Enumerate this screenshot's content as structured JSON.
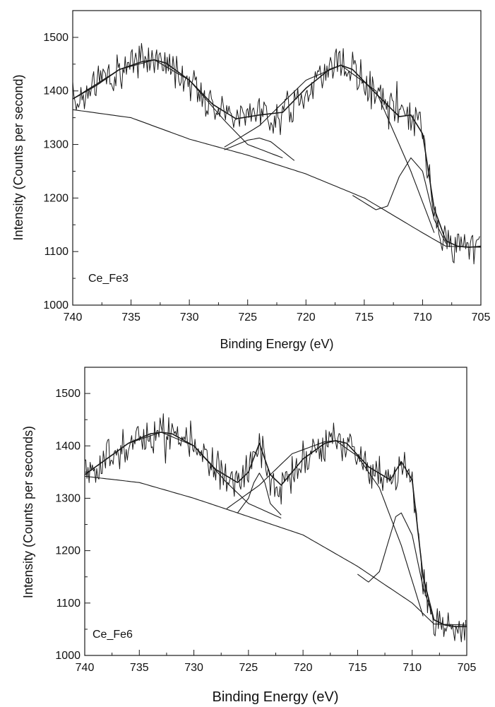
{
  "chart_data": [
    {
      "type": "line",
      "sample_label": "Ce_Fe3",
      "xlabel": "Binding Energy (eV)",
      "ylabel": "Intensity (Counts per second)",
      "xlim": [
        740,
        705
      ],
      "ylim": [
        1000,
        1550
      ],
      "x_reversed": true,
      "xticks": [
        740,
        735,
        730,
        725,
        720,
        715,
        710,
        705
      ],
      "yticks": [
        1000,
        1100,
        1200,
        1300,
        1400,
        1500
      ],
      "line_color": "#1a1a1a",
      "series": [
        {
          "role": "raw",
          "x": [
            740,
            738,
            736,
            734,
            733,
            732,
            730,
            728,
            726,
            724,
            722,
            720,
            718,
            717,
            716,
            714,
            712,
            711,
            710,
            709,
            708,
            707,
            706,
            705
          ],
          "y": [
            1385,
            1410,
            1440,
            1460,
            1462,
            1455,
            1420,
            1375,
            1350,
            1360,
            1355,
            1405,
            1440,
            1448,
            1440,
            1395,
            1350,
            1355,
            1320,
            1180,
            1120,
            1110,
            1105,
            1115
          ]
        },
        {
          "role": "envelope",
          "x": [
            740,
            738,
            736,
            734,
            733,
            732,
            730,
            728,
            726,
            724,
            722,
            720,
            718,
            717,
            716,
            714,
            712,
            711,
            710,
            709,
            708,
            707,
            706,
            705
          ],
          "y": [
            1385,
            1410,
            1440,
            1455,
            1458,
            1452,
            1420,
            1375,
            1348,
            1355,
            1360,
            1405,
            1440,
            1448,
            1440,
            1395,
            1352,
            1355,
            1320,
            1180,
            1120,
            1110,
            1108,
            1110
          ]
        },
        {
          "role": "component",
          "x": [
            740,
            736,
            733,
            730,
            727,
            725,
            722
          ],
          "y": [
            1385,
            1440,
            1458,
            1420,
            1345,
            1300,
            1275
          ]
        },
        {
          "role": "component",
          "x": [
            727,
            725,
            724,
            723,
            721
          ],
          "y": [
            1290,
            1308,
            1312,
            1305,
            1270
          ]
        },
        {
          "role": "component",
          "x": [
            727,
            724,
            720,
            717,
            714,
            711,
            709
          ],
          "y": [
            1295,
            1335,
            1420,
            1448,
            1400,
            1250,
            1135
          ]
        },
        {
          "role": "component",
          "x": [
            716,
            714,
            713,
            712,
            711,
            710,
            709,
            708
          ],
          "y": [
            1205,
            1178,
            1185,
            1240,
            1275,
            1250,
            1160,
            1115
          ]
        },
        {
          "role": "background",
          "x": [
            740,
            735,
            730,
            725,
            720,
            715,
            710,
            708,
            705
          ],
          "y": [
            1365,
            1350,
            1310,
            1280,
            1245,
            1200,
            1135,
            1110,
            1108
          ]
        }
      ]
    },
    {
      "type": "line",
      "sample_label": "Ce_Fe6",
      "xlabel": "Binding Energy (eV)",
      "ylabel": "Intensity (Counts per seconds)",
      "xlim": [
        740,
        705
      ],
      "ylim": [
        1000,
        1550
      ],
      "x_reversed": true,
      "xticks": [
        740,
        735,
        730,
        725,
        720,
        715,
        710,
        705
      ],
      "yticks": [
        1000,
        1100,
        1200,
        1300,
        1400,
        1500
      ],
      "line_color": "#1a1a1a",
      "series": [
        {
          "role": "raw",
          "x": [
            740,
            738,
            736,
            734,
            733,
            732,
            730,
            728,
            726,
            725,
            724,
            723,
            722,
            720,
            718,
            717,
            716,
            714,
            712,
            711,
            710,
            709,
            708,
            707,
            706,
            705
          ],
          "y": [
            1345,
            1375,
            1405,
            1425,
            1428,
            1425,
            1400,
            1355,
            1330,
            1355,
            1405,
            1340,
            1320,
            1375,
            1405,
            1410,
            1405,
            1360,
            1330,
            1370,
            1335,
            1150,
            1065,
            1055,
            1050,
            1050
          ]
        },
        {
          "role": "envelope",
          "x": [
            740,
            738,
            736,
            734,
            733,
            732,
            730,
            728,
            726,
            725,
            724,
            723,
            722,
            720,
            718,
            717,
            716,
            714,
            712,
            711,
            710,
            709,
            708,
            707,
            706,
            705
          ],
          "y": [
            1345,
            1375,
            1405,
            1423,
            1426,
            1423,
            1400,
            1355,
            1330,
            1350,
            1405,
            1345,
            1325,
            1375,
            1405,
            1410,
            1405,
            1360,
            1335,
            1370,
            1335,
            1150,
            1068,
            1058,
            1055,
            1055
          ]
        },
        {
          "role": "component",
          "x": [
            740,
            736,
            733,
            730,
            727,
            725,
            722
          ],
          "y": [
            1345,
            1405,
            1426,
            1400,
            1330,
            1290,
            1262
          ]
        },
        {
          "role": "component",
          "x": [
            726,
            725,
            724.5,
            724,
            723.5,
            723,
            722
          ],
          "y": [
            1272,
            1300,
            1330,
            1348,
            1330,
            1290,
            1268
          ]
        },
        {
          "role": "component",
          "x": [
            727,
            724,
            721,
            718,
            717,
            715,
            713,
            711,
            709
          ],
          "y": [
            1280,
            1325,
            1385,
            1408,
            1410,
            1380,
            1320,
            1210,
            1075
          ]
        },
        {
          "role": "component",
          "x": [
            715,
            714,
            713,
            712,
            711.5,
            711,
            710,
            709,
            708
          ],
          "y": [
            1155,
            1140,
            1160,
            1230,
            1265,
            1272,
            1230,
            1130,
            1068
          ]
        },
        {
          "role": "background",
          "x": [
            740,
            735,
            730,
            725,
            720,
            715,
            710,
            708,
            705
          ],
          "y": [
            1342,
            1330,
            1300,
            1265,
            1230,
            1170,
            1100,
            1060,
            1058
          ]
        }
      ]
    }
  ]
}
